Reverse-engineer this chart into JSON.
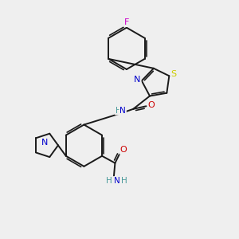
{
  "bg_color": "#efefef",
  "bond_color": "#1a1a1a",
  "atoms": {
    "F": "#cc00cc",
    "N": "#0000cc",
    "O": "#cc0000",
    "S": "#cccc00",
    "C": "#1a1a1a",
    "H": "#4a9a9a"
  },
  "lw": 1.4,
  "lw_double_inner": 1.2
}
